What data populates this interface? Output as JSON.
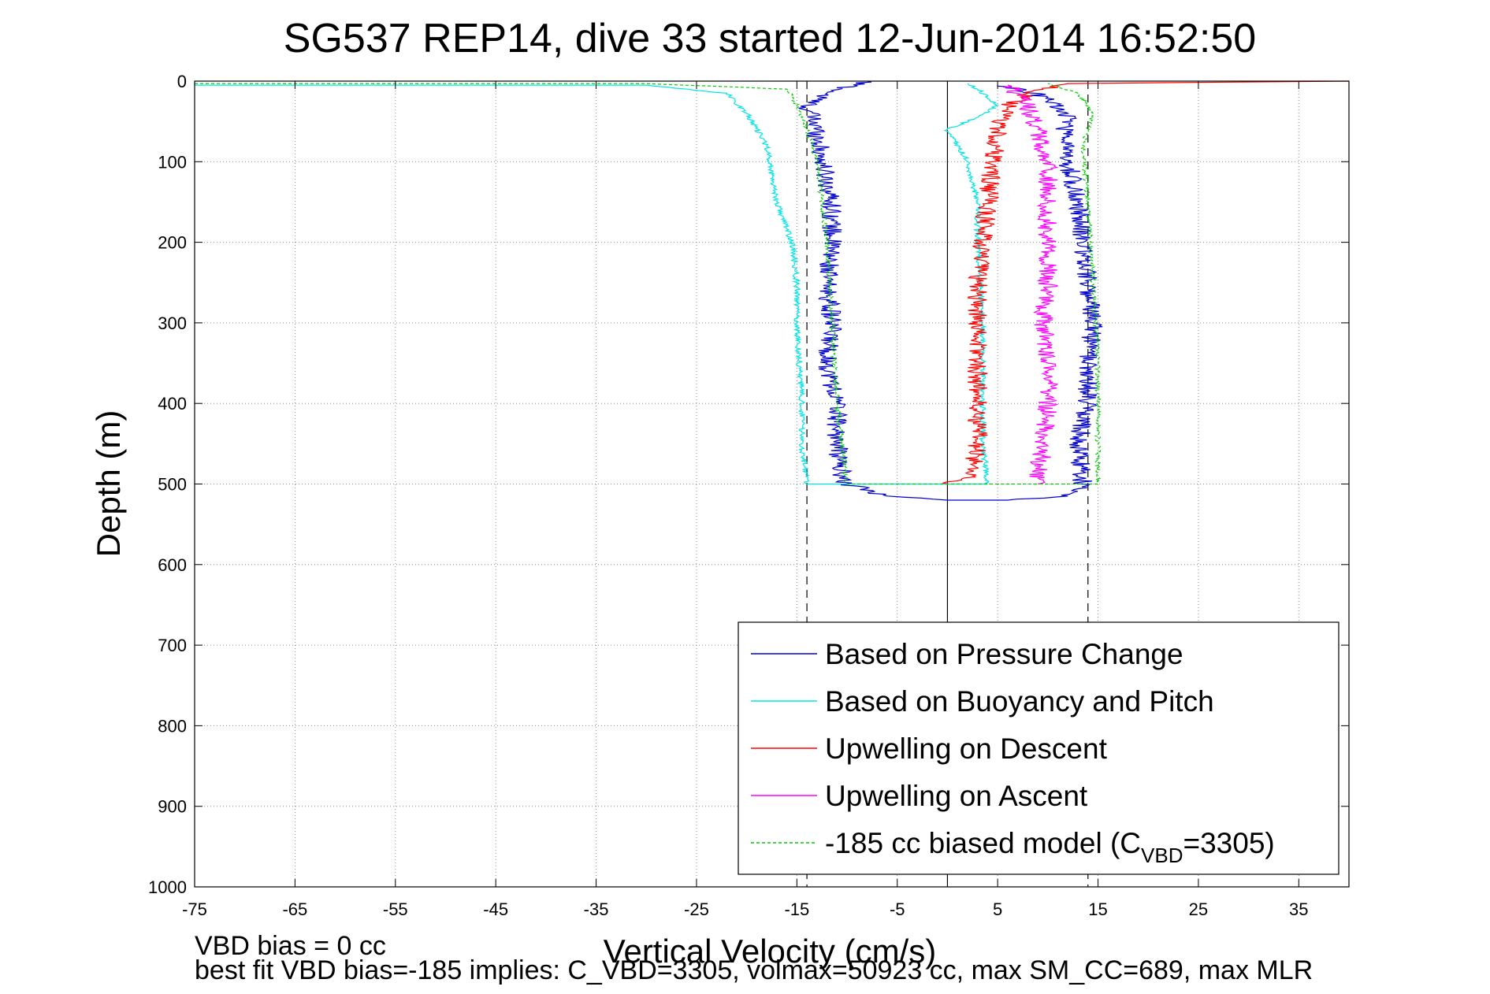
{
  "chart_data": {
    "type": "line",
    "title": "SG537 REP14, dive 33 started 12-Jun-2014 16:52:50",
    "xlabel": "Vertical Velocity (cm/s)",
    "ylabel": "Depth (m)",
    "xlim": [
      -75,
      40
    ],
    "ylim": [
      1000,
      0
    ],
    "y_reversed": true,
    "grid": true,
    "xticks": [
      "-75",
      "-65",
      "-55",
      "-45",
      "-35",
      "-25",
      "-15",
      "-5",
      "5",
      "15",
      "25",
      "35"
    ],
    "yticks": [
      "0",
      "100",
      "200",
      "300",
      "400",
      "500",
      "600",
      "700",
      "800",
      "900",
      "1000"
    ],
    "reference_lines": {
      "zero": 0,
      "dashed": [
        -14,
        14
      ]
    },
    "legend_position": "bottom-right",
    "legend": [
      {
        "label": "Based on Pressure Change",
        "color": "#0000cc"
      },
      {
        "label": "Based on Buoyancy and Pitch",
        "color": "#00e5e5"
      },
      {
        "label": "Upwelling on Descent",
        "color": "#ff0000"
      },
      {
        "label": "Upwelling on Ascent",
        "color": "#ff00ff"
      },
      {
        "label_prefix": "-185 cc biased model (C",
        "label_sub": "VBD",
        "label_suffix": "=3305)",
        "color": "#00cc00",
        "dashed": true
      }
    ],
    "series": [
      {
        "name": "Based on Pressure Change",
        "color": "#0000cc",
        "noise": 1.0,
        "points": [
          [
            -8,
            0
          ],
          [
            -12,
            15
          ],
          [
            -14,
            30
          ],
          [
            -13,
            60
          ],
          [
            -12.5,
            100
          ],
          [
            -11.5,
            150
          ],
          [
            -11.5,
            200
          ],
          [
            -12,
            250
          ],
          [
            -11.5,
            300
          ],
          [
            -12,
            350
          ],
          [
            -11,
            400
          ],
          [
            -11,
            450
          ],
          [
            -10.5,
            490
          ],
          [
            -10,
            500
          ],
          [
            -6,
            515
          ],
          [
            0,
            520
          ],
          [
            6,
            520
          ],
          [
            12,
            515
          ],
          [
            13.5,
            500
          ],
          [
            13,
            450
          ],
          [
            14,
            400
          ],
          [
            14,
            350
          ],
          [
            14.5,
            300
          ],
          [
            14,
            250
          ],
          [
            13.5,
            200
          ],
          [
            13,
            150
          ],
          [
            12,
            100
          ],
          [
            11.5,
            70
          ],
          [
            12,
            40
          ],
          [
            10,
            20
          ],
          [
            5,
            5
          ]
        ]
      },
      {
        "name": "Based on Buoyancy and Pitch",
        "color": "#00e5e5",
        "noise": 0.3,
        "points": [
          [
            -75,
            5
          ],
          [
            -30,
            5
          ],
          [
            -22,
            15
          ],
          [
            -20,
            40
          ],
          [
            -18,
            80
          ],
          [
            -17,
            150
          ],
          [
            -15.5,
            200
          ],
          [
            -15,
            250
          ],
          [
            -15,
            300
          ],
          [
            -14.5,
            400
          ],
          [
            -14.5,
            450
          ],
          [
            -14,
            500
          ],
          [
            0,
            500
          ],
          [
            4,
            500
          ],
          [
            3.5,
            450
          ],
          [
            3.5,
            300
          ],
          [
            3,
            200
          ],
          [
            3,
            150
          ],
          [
            2,
            100
          ],
          [
            0,
            60
          ],
          [
            3,
            45
          ],
          [
            5,
            30
          ],
          [
            3,
            10
          ],
          [
            2,
            3
          ]
        ]
      },
      {
        "name": "Upwelling on Descent",
        "color": "#ff0000",
        "noise": 1.0,
        "points": [
          [
            40,
            0
          ],
          [
            12,
            3
          ],
          [
            8,
            15
          ],
          [
            6,
            30
          ],
          [
            5,
            60
          ],
          [
            4.5,
            100
          ],
          [
            4,
            150
          ],
          [
            3.5,
            200
          ],
          [
            3,
            250
          ],
          [
            3,
            300
          ],
          [
            3,
            400
          ],
          [
            3,
            450
          ],
          [
            2.5,
            490
          ],
          [
            0,
            500
          ]
        ]
      },
      {
        "name": "Upwelling on Ascent",
        "color": "#ff00ff",
        "noise": 1.0,
        "points": [
          [
            9,
            500
          ],
          [
            9.5,
            450
          ],
          [
            10,
            400
          ],
          [
            10,
            350
          ],
          [
            9.5,
            300
          ],
          [
            10,
            250
          ],
          [
            10,
            200
          ],
          [
            10,
            150
          ],
          [
            10,
            100
          ],
          [
            9,
            60
          ],
          [
            8,
            30
          ],
          [
            7,
            15
          ],
          [
            6,
            5
          ]
        ]
      },
      {
        "name": "-185 cc biased model (CVBD=3305)",
        "color": "#00cc00",
        "dashed": true,
        "noise": 0.25,
        "points": [
          [
            -75,
            3
          ],
          [
            -30,
            3
          ],
          [
            -16,
            10
          ],
          [
            -15,
            30
          ],
          [
            -14,
            60
          ],
          [
            -13,
            100
          ],
          [
            -12,
            200
          ],
          [
            -11.5,
            300
          ],
          [
            -11,
            400
          ],
          [
            -10.5,
            450
          ],
          [
            -10,
            500
          ],
          [
            0,
            500
          ],
          [
            15,
            500
          ],
          [
            15,
            450
          ],
          [
            15,
            350
          ],
          [
            14.5,
            250
          ],
          [
            14,
            150
          ],
          [
            13.5,
            80
          ],
          [
            14.5,
            40
          ],
          [
            13,
            15
          ],
          [
            10,
            3
          ]
        ]
      }
    ]
  },
  "footer": {
    "line1": "VBD bias = 0 cc",
    "line2": "best fit VBD bias=-185 implies: C_VBD=3305, volmax=50923 cc, max SM_CC=689, max MLR"
  }
}
